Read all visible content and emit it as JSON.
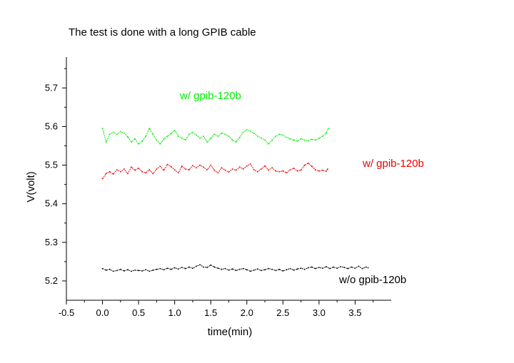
{
  "chart_data": {
    "type": "line",
    "title": "The test is done with a long GPIB cable",
    "xlabel": "time(min)",
    "ylabel": "V(volt)",
    "xlim": [
      -0.5,
      4.0
    ],
    "ylim": [
      5.15,
      5.78
    ],
    "x_ticks": [
      "-0.5",
      "0.0",
      "0.5",
      "1.0",
      "1.5",
      "2.0",
      "2.5",
      "3.0",
      "3.5"
    ],
    "y_ticks": [
      "5.2",
      "5.3",
      "5.4",
      "5.5",
      "5.6",
      "5.7"
    ],
    "grid": false,
    "series": [
      {
        "name": "w/  gpib-120b",
        "color": "#00ee00",
        "x": [
          0.0,
          0.05,
          0.1,
          0.15,
          0.2,
          0.25,
          0.3,
          0.35,
          0.4,
          0.45,
          0.5,
          0.55,
          0.6,
          0.65,
          0.7,
          0.75,
          0.8,
          0.85,
          0.9,
          0.95,
          1.0,
          1.05,
          1.1,
          1.15,
          1.2,
          1.25,
          1.3,
          1.35,
          1.4,
          1.45,
          1.5,
          1.55,
          1.6,
          1.65,
          1.7,
          1.75,
          1.8,
          1.85,
          1.9,
          1.95,
          2.0,
          2.05,
          2.1,
          2.15,
          2.2,
          2.25,
          2.3,
          2.35,
          2.4,
          2.45,
          2.5,
          2.55,
          2.6,
          2.65,
          2.7,
          2.75,
          2.8,
          2.85,
          2.9,
          2.95,
          3.0,
          3.05,
          3.1,
          3.13
        ],
        "y": [
          5.595,
          5.56,
          5.58,
          5.585,
          5.58,
          5.587,
          5.583,
          5.573,
          5.56,
          5.568,
          5.555,
          5.562,
          5.575,
          5.595,
          5.58,
          5.565,
          5.555,
          5.568,
          5.575,
          5.582,
          5.59,
          5.575,
          5.57,
          5.565,
          5.58,
          5.585,
          5.578,
          5.57,
          5.575,
          5.56,
          5.57,
          5.58,
          5.575,
          5.583,
          5.58,
          5.575,
          5.565,
          5.56,
          5.572,
          5.585,
          5.592,
          5.588,
          5.582,
          5.575,
          5.57,
          5.565,
          5.555,
          5.565,
          5.575,
          5.58,
          5.578,
          5.572,
          5.568,
          5.565,
          5.562,
          5.568,
          5.565,
          5.563,
          5.567,
          5.565,
          5.57,
          5.575,
          5.583,
          5.595
        ]
      },
      {
        "name": "w/ gpib-120b",
        "color": "#ee0000",
        "x": [
          0.0,
          0.05,
          0.1,
          0.15,
          0.2,
          0.25,
          0.3,
          0.35,
          0.4,
          0.45,
          0.5,
          0.55,
          0.6,
          0.65,
          0.7,
          0.75,
          0.8,
          0.85,
          0.9,
          0.95,
          1.0,
          1.05,
          1.1,
          1.15,
          1.2,
          1.25,
          1.3,
          1.35,
          1.4,
          1.45,
          1.5,
          1.55,
          1.6,
          1.65,
          1.7,
          1.75,
          1.8,
          1.85,
          1.9,
          1.95,
          2.0,
          2.05,
          2.1,
          2.15,
          2.2,
          2.25,
          2.3,
          2.35,
          2.4,
          2.45,
          2.5,
          2.55,
          2.6,
          2.65,
          2.7,
          2.75,
          2.8,
          2.85,
          2.9,
          2.95,
          3.0,
          3.05,
          3.1,
          3.12
        ],
        "y": [
          5.465,
          5.478,
          5.483,
          5.477,
          5.488,
          5.483,
          5.49,
          5.478,
          5.495,
          5.487,
          5.492,
          5.483,
          5.48,
          5.488,
          5.478,
          5.49,
          5.497,
          5.487,
          5.502,
          5.496,
          5.488,
          5.48,
          5.497,
          5.49,
          5.488,
          5.499,
          5.493,
          5.5,
          5.495,
          5.488,
          5.5,
          5.487,
          5.48,
          5.493,
          5.487,
          5.482,
          5.49,
          5.487,
          5.495,
          5.49,
          5.498,
          5.503,
          5.488,
          5.483,
          5.49,
          5.498,
          5.487,
          5.493,
          5.485,
          5.483,
          5.485,
          5.48,
          5.488,
          5.492,
          5.485,
          5.487,
          5.5,
          5.505,
          5.497,
          5.488,
          5.485,
          5.487,
          5.484,
          5.49
        ]
      },
      {
        "name": "w/o gpib-120b",
        "color": "#000000",
        "x": [
          0.0,
          0.05,
          0.1,
          0.15,
          0.2,
          0.25,
          0.3,
          0.35,
          0.4,
          0.45,
          0.5,
          0.55,
          0.6,
          0.65,
          0.7,
          0.75,
          0.8,
          0.85,
          0.9,
          0.95,
          1.0,
          1.05,
          1.1,
          1.15,
          1.2,
          1.25,
          1.3,
          1.35,
          1.4,
          1.45,
          1.5,
          1.55,
          1.6,
          1.65,
          1.7,
          1.75,
          1.8,
          1.85,
          1.9,
          1.95,
          2.0,
          2.05,
          2.1,
          2.15,
          2.2,
          2.25,
          2.3,
          2.35,
          2.4,
          2.45,
          2.5,
          2.55,
          2.6,
          2.65,
          2.7,
          2.75,
          2.8,
          2.85,
          2.9,
          2.95,
          3.0,
          3.05,
          3.1,
          3.15,
          3.2,
          3.25,
          3.3,
          3.35,
          3.4,
          3.45,
          3.5,
          3.55,
          3.6,
          3.65,
          3.68
        ],
        "y": [
          5.232,
          5.228,
          5.23,
          5.225,
          5.227,
          5.23,
          5.226,
          5.229,
          5.225,
          5.228,
          5.227,
          5.226,
          5.229,
          5.225,
          5.228,
          5.23,
          5.232,
          5.229,
          5.233,
          5.23,
          5.234,
          5.231,
          5.235,
          5.232,
          5.236,
          5.233,
          5.238,
          5.242,
          5.236,
          5.235,
          5.241,
          5.236,
          5.233,
          5.23,
          5.232,
          5.228,
          5.231,
          5.227,
          5.23,
          5.232,
          5.229,
          5.225,
          5.228,
          5.231,
          5.227,
          5.229,
          5.232,
          5.23,
          5.227,
          5.23,
          5.226,
          5.229,
          5.232,
          5.228,
          5.231,
          5.233,
          5.23,
          5.234,
          5.236,
          5.232,
          5.235,
          5.233,
          5.237,
          5.232,
          5.236,
          5.233,
          5.237,
          5.235,
          5.232,
          5.236,
          5.233,
          5.238,
          5.232,
          5.236,
          5.234
        ]
      }
    ]
  }
}
